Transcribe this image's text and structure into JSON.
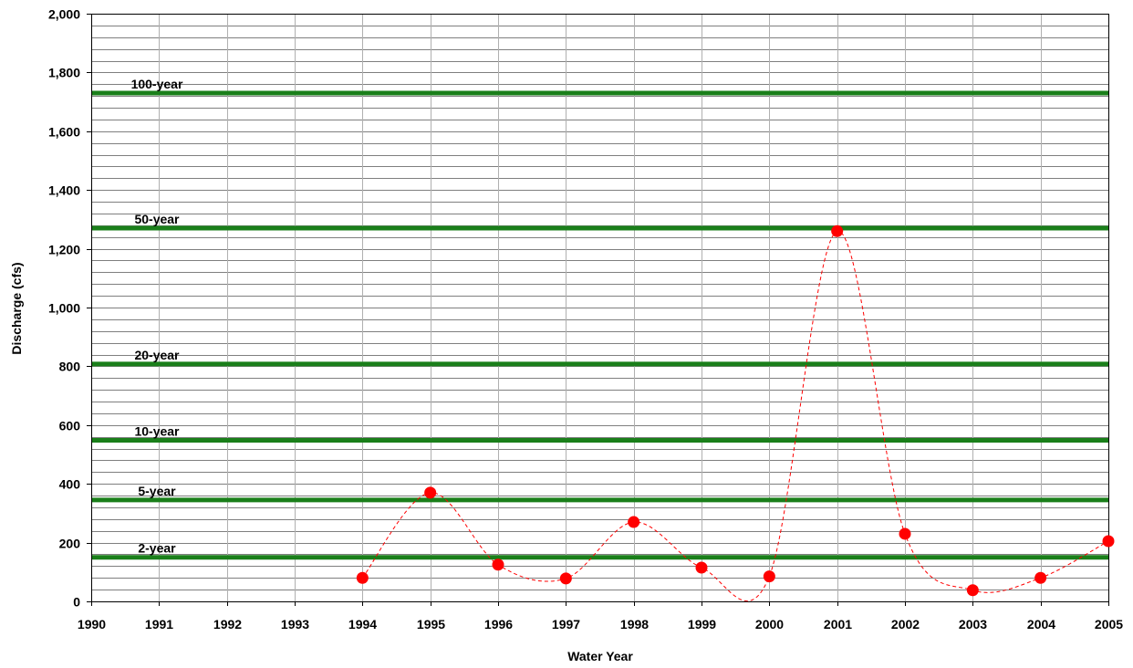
{
  "chart_data": {
    "type": "line",
    "title": "",
    "xlabel": "Water Year",
    "ylabel": "Discharge (cfs)",
    "xlim": [
      1990,
      2005
    ],
    "ylim": [
      0,
      2000
    ],
    "x_ticks": [
      "1990",
      "1991",
      "1992",
      "1993",
      "1994",
      "1995",
      "1996",
      "1997",
      "1998",
      "1999",
      "2000",
      "2001",
      "2002",
      "2003",
      "2004",
      "2005"
    ],
    "y_ticks": [
      "0",
      "200",
      "400",
      "600",
      "800",
      "1,000",
      "1,200",
      "1,400",
      "1,600",
      "1,800",
      "2,000"
    ],
    "y_minor_step": 40,
    "grid": true,
    "series": [
      {
        "x": [
          1994,
          1995,
          1996,
          1997,
          1998,
          1999,
          2000,
          2001,
          2002,
          2003,
          2004,
          2005
        ],
        "y": [
          80,
          370,
          125,
          78,
          270,
          115,
          85,
          1260,
          230,
          38,
          80,
          205
        ],
        "line_style": "dashed smoothed",
        "color": "#ff0000"
      }
    ],
    "reference_lines": [
      {
        "label": "100-year",
        "y": 1730
      },
      {
        "label": "50-year",
        "y": 1270
      },
      {
        "label": "20-year",
        "y": 808
      },
      {
        "label": "10-year",
        "y": 548
      },
      {
        "label": "5-year",
        "y": 345
      },
      {
        "label": "2-year",
        "y": 150
      }
    ],
    "colors": {
      "reference_line": "#1a7f1a",
      "marker": "#ff0000",
      "grid": "#000000"
    }
  }
}
